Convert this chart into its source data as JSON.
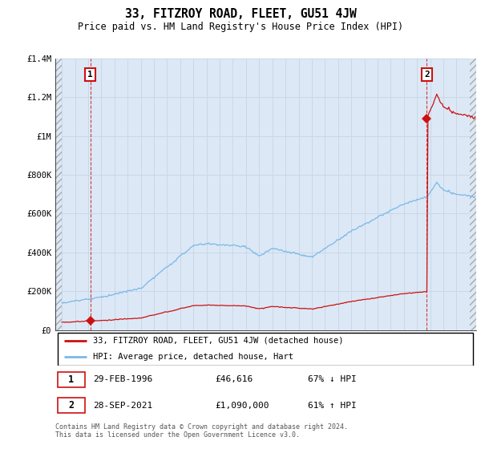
{
  "title": "33, FITZROY ROAD, FLEET, GU51 4JW",
  "subtitle": "Price paid vs. HM Land Registry's House Price Index (HPI)",
  "hpi_label": "HPI: Average price, detached house, Hart",
  "property_label": "33, FITZROY ROAD, FLEET, GU51 4JW (detached house)",
  "transaction1_label": "1",
  "transaction1_date": "29-FEB-1996",
  "transaction1_price": "£46,616",
  "transaction1_hpi": "67% ↓ HPI",
  "transaction1_year": 1996.16,
  "transaction1_value": 46616,
  "transaction2_label": "2",
  "transaction2_date": "28-SEP-2021",
  "transaction2_price": "£1,090,000",
  "transaction2_hpi": "61% ↑ HPI",
  "transaction2_year": 2021.75,
  "transaction2_value": 1090000,
  "ylim": [
    0,
    1400000
  ],
  "yticks": [
    0,
    200000,
    400000,
    600000,
    800000,
    1000000,
    1200000,
    1400000
  ],
  "ytick_labels": [
    "£0",
    "£200K",
    "£400K",
    "£600K",
    "£800K",
    "£1M",
    "£1.2M",
    "£1.4M"
  ],
  "xlim_start": 1993.5,
  "xlim_end": 2025.5,
  "hpi_color": "#7ab8e8",
  "property_color": "#cc1111",
  "grid_color": "#c8d8e8",
  "bg_color": "#dce8f5",
  "annotation_box_color": "#cc1111",
  "footer": "Contains HM Land Registry data © Crown copyright and database right 2024.\nThis data is licensed under the Open Government Licence v3.0.",
  "legend_box_color": "#000000",
  "hpi_seed": 123,
  "prop_seed": 456
}
